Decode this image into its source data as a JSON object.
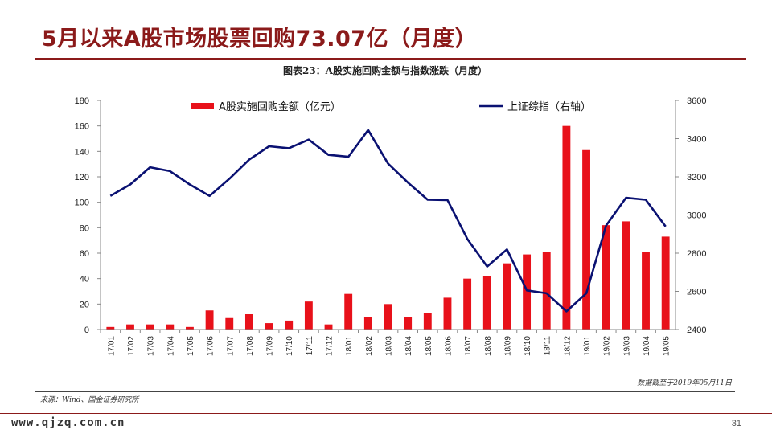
{
  "slide": {
    "title": "5月以来A股市场股票回购73.07亿（月度）",
    "figure_caption": "图表23：A股实施回购金额与指数涨跌（月度）",
    "date_note": "数据截至于2019年05月11日",
    "source": "来源：Wind、国金证券研究所",
    "watermark": "www.qjzq.com.cn",
    "page_number": "31"
  },
  "colors": {
    "title": "#8B1A1A",
    "bar": "#E8111A",
    "line": "#0A1172"
  },
  "chart_data": {
    "type": "bar+line",
    "categories": [
      "17/01",
      "17/02",
      "17/03",
      "17/04",
      "17/05",
      "17/06",
      "17/07",
      "17/08",
      "17/09",
      "17/10",
      "17/11",
      "17/12",
      "18/01",
      "18/02",
      "18/03",
      "18/04",
      "18/05",
      "18/06",
      "18/07",
      "18/08",
      "18/09",
      "18/10",
      "18/11",
      "18/12",
      "19/01",
      "19/02",
      "19/03",
      "19/04",
      "19/05"
    ],
    "series": [
      {
        "name": "A股实施回购金额（亿元）",
        "type": "bar",
        "axis": "left",
        "values": [
          2,
          4,
          4,
          4,
          2,
          15,
          9,
          12,
          5,
          7,
          22,
          4,
          28,
          10,
          20,
          10,
          13,
          25,
          40,
          42,
          52,
          59,
          61,
          160,
          141,
          82,
          85,
          61,
          73
        ]
      },
      {
        "name": "上证综指（右轴）",
        "type": "line",
        "axis": "right",
        "values": [
          3100,
          3160,
          3250,
          3230,
          3160,
          3100,
          3190,
          3290,
          3360,
          3350,
          3395,
          3315,
          3305,
          3445,
          3270,
          3170,
          3080,
          3078,
          2875,
          2730,
          2820,
          2605,
          2590,
          2495,
          2590,
          2945,
          3090,
          3080,
          2940
        ]
      }
    ],
    "y_left": {
      "min": 0,
      "max": 180,
      "ticks": [
        0,
        20,
        40,
        60,
        80,
        100,
        120,
        140,
        160,
        180
      ]
    },
    "y_right": {
      "min": 2400,
      "max": 3600,
      "ticks": [
        2400,
        2600,
        2800,
        3000,
        3200,
        3400,
        3600
      ]
    },
    "legend_position": "top",
    "grid": false
  }
}
